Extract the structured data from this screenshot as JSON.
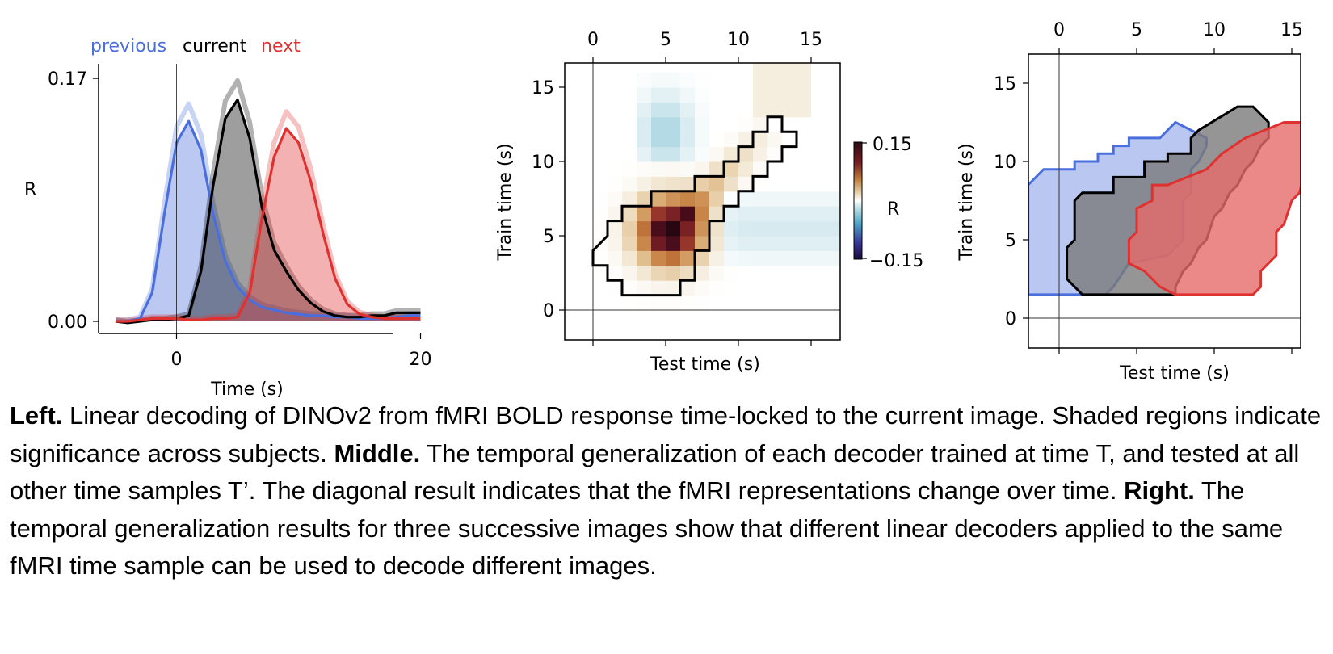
{
  "chart_data": [
    {
      "type": "line",
      "xlabel": "Time (s)",
      "ylabel": "R",
      "xlim": [
        -6,
        21
      ],
      "ylim": [
        0,
        0.17
      ],
      "x_ticks": [
        "0",
        "20"
      ],
      "y_ticks": [
        "0.00",
        "0.17"
      ],
      "legend_placement": "top",
      "series": [
        {
          "name": "previous",
          "color": "#4a6fdc",
          "x": [
            -5,
            -4,
            -3,
            -2,
            -1,
            0,
            1,
            2,
            3,
            4,
            5,
            6,
            7,
            8,
            9,
            10,
            11,
            12,
            13,
            14,
            15,
            16,
            17,
            18,
            19,
            20
          ],
          "y": [
            0.0,
            0.0,
            0.002,
            0.02,
            0.075,
            0.125,
            0.14,
            0.12,
            0.075,
            0.042,
            0.024,
            0.015,
            0.01,
            0.008,
            0.006,
            0.005,
            0.004,
            0.004,
            0.003,
            0.003,
            0.002,
            0.002,
            0.002,
            0.003,
            0.004,
            0.004
          ]
        },
        {
          "name": "current",
          "color": "#000000",
          "x": [
            -5,
            -4,
            -3,
            -2,
            -1,
            0,
            1,
            2,
            3,
            4,
            5,
            6,
            7,
            8,
            9,
            10,
            11,
            12,
            13,
            14,
            15,
            16,
            17,
            18,
            19,
            20
          ],
          "y": [
            0.0,
            -0.001,
            0.0,
            0.001,
            0.001,
            0.002,
            0.004,
            0.035,
            0.095,
            0.142,
            0.155,
            0.128,
            0.08,
            0.05,
            0.035,
            0.022,
            0.013,
            0.007,
            0.004,
            0.003,
            0.003,
            0.004,
            0.004,
            0.006,
            0.006,
            0.006
          ]
        },
        {
          "name": "next",
          "color": "#e03131",
          "x": [
            -5,
            -4,
            -3,
            -2,
            -1,
            0,
            1,
            2,
            3,
            4,
            5,
            6,
            7,
            8,
            9,
            10,
            11,
            12,
            13,
            14,
            15,
            16,
            17,
            18,
            19,
            20
          ],
          "y": [
            0.0,
            0.0,
            0.001,
            0.002,
            0.002,
            0.002,
            0.001,
            0.001,
            0.002,
            0.002,
            0.003,
            0.02,
            0.072,
            0.115,
            0.135,
            0.125,
            0.098,
            0.062,
            0.03,
            0.012,
            0.005,
            0.003,
            0.002,
            0.002,
            0.002,
            0.002
          ]
        }
      ]
    },
    {
      "type": "heatmap",
      "xlabel": "Test time (s)",
      "ylabel": "Train time (s)",
      "xlim": [
        -2,
        17
      ],
      "ylim": [
        -2,
        17
      ],
      "x_ticks": [
        "0",
        "5",
        "10",
        "15"
      ],
      "y_ticks": [
        "0",
        "5",
        "10",
        "15"
      ],
      "colorbar_label": "R",
      "colorbar_ticks": [
        "0.15",
        "−0.15"
      ],
      "colorbar_range": [
        -0.15,
        0.15
      ],
      "significance_contour": [
        [
          0,
          3
        ],
        [
          0,
          4
        ],
        [
          1,
          5
        ],
        [
          1,
          6
        ],
        [
          2,
          6
        ],
        [
          2,
          7
        ],
        [
          4,
          7
        ],
        [
          4,
          8
        ],
        [
          7,
          8
        ],
        [
          7,
          9
        ],
        [
          9,
          9
        ],
        [
          9,
          10
        ],
        [
          10,
          10
        ],
        [
          10,
          11
        ],
        [
          11,
          11
        ],
        [
          11,
          12
        ],
        [
          12,
          12
        ],
        [
          12,
          13
        ],
        [
          13,
          13
        ],
        [
          13,
          12
        ],
        [
          14,
          12
        ],
        [
          14,
          11
        ],
        [
          13,
          11
        ],
        [
          13,
          10
        ],
        [
          12,
          10
        ],
        [
          12,
          9
        ],
        [
          11,
          9
        ],
        [
          11,
          8
        ],
        [
          10,
          8
        ],
        [
          10,
          7
        ],
        [
          9,
          7
        ],
        [
          9,
          6
        ],
        [
          8,
          6
        ],
        [
          8,
          4
        ],
        [
          7,
          4
        ],
        [
          7,
          2
        ],
        [
          6,
          2
        ],
        [
          6,
          1
        ],
        [
          2,
          1
        ],
        [
          2,
          2
        ],
        [
          1,
          2
        ],
        [
          1,
          3
        ],
        [
          0,
          3
        ]
      ],
      "peak": {
        "test": 5,
        "train": 5,
        "value": 0.15
      }
    },
    {
      "type": "area",
      "xlabel": "Test time (s)",
      "ylabel": "Train time (s)",
      "xlim": [
        -2,
        17
      ],
      "ylim": [
        -2,
        17
      ],
      "x_ticks": [
        "0",
        "5",
        "10",
        "15"
      ],
      "y_ticks": [
        "0",
        "5",
        "10",
        "15"
      ],
      "series": [
        {
          "name": "previous",
          "color": "#4a6fdc",
          "fill": "#a9b9ee",
          "polygon": [
            [
              -2,
              8.5
            ],
            [
              -1.5,
              9
            ],
            [
              -1,
              9.5
            ],
            [
              1,
              9.5
            ],
            [
              1,
              10
            ],
            [
              2.5,
              10
            ],
            [
              2.5,
              10.5
            ],
            [
              3.5,
              10.5
            ],
            [
              3.5,
              11
            ],
            [
              4.5,
              11
            ],
            [
              4.5,
              11.5
            ],
            [
              6.5,
              11.5
            ],
            [
              7.5,
              12.5
            ],
            [
              9.5,
              11.5
            ],
            [
              9.5,
              11
            ],
            [
              9.0,
              10.0
            ],
            [
              8.5,
              9.5
            ],
            [
              8.5,
              8.0
            ],
            [
              8.0,
              7.5
            ],
            [
              8.0,
              5.0
            ],
            [
              7.5,
              4.5
            ],
            [
              7.0,
              4.0
            ],
            [
              4.5,
              3.5
            ],
            [
              3.5,
              2.0
            ],
            [
              3.0,
              1.5
            ],
            [
              -2,
              1.5
            ]
          ]
        },
        {
          "name": "current",
          "color": "#000000",
          "fill": "#7a7a7a",
          "polygon": [
            [
              0.5,
              2.5
            ],
            [
              0.5,
              4.5
            ],
            [
              1.0,
              5.0
            ],
            [
              1.0,
              7.5
            ],
            [
              1.5,
              8.0
            ],
            [
              3.5,
              8.0
            ],
            [
              3.5,
              9.0
            ],
            [
              5.5,
              9.0
            ],
            [
              5.5,
              10.0
            ],
            [
              7.0,
              10.0
            ],
            [
              7.0,
              10.5
            ],
            [
              8.5,
              10.5
            ],
            [
              8.5,
              11.5
            ],
            [
              9.0,
              12.0
            ],
            [
              11.5,
              13.5
            ],
            [
              12.5,
              13.5
            ],
            [
              13.5,
              12.5
            ],
            [
              13.5,
              11.5
            ],
            [
              13.0,
              11.0
            ],
            [
              12.5,
              10.0
            ],
            [
              12.0,
              9.5
            ],
            [
              11.5,
              8.5
            ],
            [
              11.0,
              8.0
            ],
            [
              10.5,
              7.0
            ],
            [
              10.0,
              6.5
            ],
            [
              9.5,
              5.0
            ],
            [
              9.0,
              4.5
            ],
            [
              8.5,
              3.5
            ],
            [
              8.0,
              3.0
            ],
            [
              7.5,
              2.0
            ],
            [
              7.5,
              1.5
            ],
            [
              1.5,
              1.5
            ]
          ]
        },
        {
          "name": "next",
          "color": "#e03131",
          "fill": "#e66a6a",
          "polygon": [
            [
              4.5,
              3.5
            ],
            [
              4.5,
              5.0
            ],
            [
              5.0,
              5.5
            ],
            [
              5.0,
              7.0
            ],
            [
              6.0,
              7.5
            ],
            [
              6.0,
              8.5
            ],
            [
              7.0,
              8.5
            ],
            [
              9.5,
              9.5
            ],
            [
              10.5,
              10.5
            ],
            [
              12.0,
              11.5
            ],
            [
              14.5,
              12.5
            ],
            [
              16.0,
              12.5
            ],
            [
              16.5,
              12.0
            ],
            [
              16.5,
              10.5
            ],
            [
              16.0,
              10.0
            ],
            [
              15.5,
              8.0
            ],
            [
              15.0,
              7.5
            ],
            [
              14.5,
              6.0
            ],
            [
              14.0,
              5.5
            ],
            [
              14.0,
              4.0
            ],
            [
              13.5,
              3.5
            ],
            [
              13.0,
              3.0
            ],
            [
              13.0,
              2.0
            ],
            [
              12.5,
              1.5
            ],
            [
              7.5,
              1.5
            ],
            [
              6.5,
              2.0
            ],
            [
              5.5,
              3.0
            ]
          ]
        }
      ]
    }
  ],
  "caption": {
    "left_label": "Left.",
    "left_text": " Linear decoding of DINOv2 from fMRI BOLD response time-locked to the current image. Shaded regions indicate significance across subjects. ",
    "middle_label": "Middle.",
    "middle_text": " The temporal generalization of each decoder trained at time T, and tested at all other time samples T’. The diagonal result indicates that the fMRI representations change over time. ",
    "right_label": "Right.",
    "right_text": " The temporal generalization results for three successive images show that different linear decoders applied to the same fMRI time sample can be used to decode different images."
  }
}
